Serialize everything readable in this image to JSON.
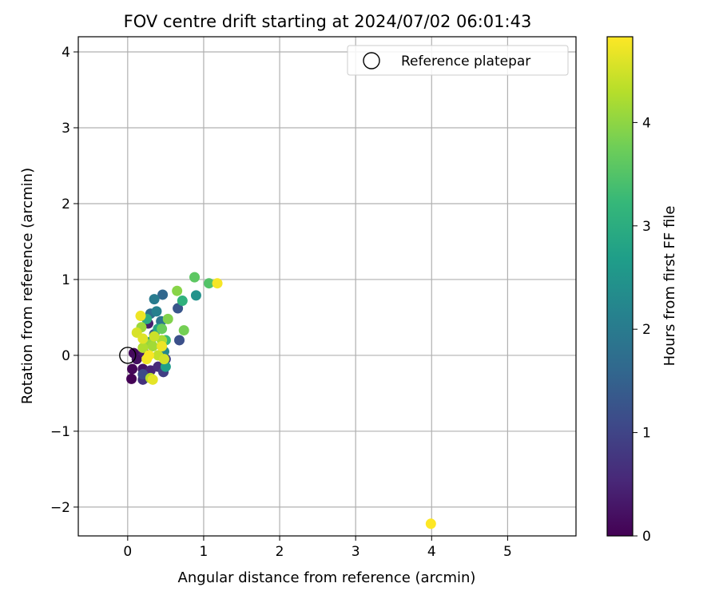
{
  "chart_data": {
    "type": "scatter",
    "title": "FOV centre drift starting at 2024/07/02 06:01:43",
    "xlabel": "Angular distance from reference (arcmin)",
    "ylabel": "Rotation from reference (arcmin)",
    "xlim": [
      -0.65,
      5.9
    ],
    "ylim": [
      -2.38,
      4.2
    ],
    "x_ticks": [
      0,
      1,
      2,
      3,
      4,
      5
    ],
    "y_ticks": [
      -2,
      -1,
      0,
      1,
      2,
      3,
      4
    ],
    "x_tick_labels": [
      "0",
      "1",
      "2",
      "3",
      "4",
      "5"
    ],
    "y_tick_labels": [
      "−2",
      "−1",
      "0",
      "1",
      "2",
      "3",
      "4"
    ],
    "grid": true,
    "legend": {
      "position": "top-right",
      "entries": [
        "Reference platepar"
      ]
    },
    "reference_point": {
      "x": 0,
      "y": 0
    },
    "colorbar": {
      "label": "Hours from first FF file",
      "colormap": "viridis",
      "min": 0,
      "max": 4.83,
      "ticks": [
        0,
        1,
        2,
        3,
        4
      ],
      "tick_labels": [
        "0",
        "1",
        "2",
        "3",
        "4"
      ]
    },
    "colormap_stops": [
      "#440154",
      "#482878",
      "#3e4989",
      "#31688e",
      "#26828e",
      "#1f9e89",
      "#35b779",
      "#6ece58",
      "#b5de2b",
      "#fde725"
    ],
    "points": [
      {
        "x": 0.05,
        "y": -0.31,
        "hours": 0.02
      },
      {
        "x": 0.06,
        "y": -0.18,
        "hours": 0.08
      },
      {
        "x": 0.08,
        "y": 0.03,
        "hours": 0.12
      },
      {
        "x": 0.12,
        "y": -0.05,
        "hours": 0.2
      },
      {
        "x": 0.2,
        "y": -0.18,
        "hours": 0.25
      },
      {
        "x": 0.21,
        "y": 0.04,
        "hours": 0.35
      },
      {
        "x": 0.27,
        "y": 0.42,
        "hours": 0.4
      },
      {
        "x": 0.3,
        "y": -0.2,
        "hours": 0.5
      },
      {
        "x": 0.4,
        "y": -0.15,
        "hours": 0.6
      },
      {
        "x": 0.2,
        "y": -0.32,
        "hours": 0.7
      },
      {
        "x": 0.47,
        "y": -0.22,
        "hours": 0.9
      },
      {
        "x": 0.5,
        "y": -0.05,
        "hours": 1.0
      },
      {
        "x": 0.2,
        "y": -0.25,
        "hours": 1.1
      },
      {
        "x": 0.68,
        "y": 0.2,
        "hours": 1.2
      },
      {
        "x": 0.66,
        "y": 0.62,
        "hours": 1.3
      },
      {
        "x": 0.35,
        "y": 0.28,
        "hours": 1.45
      },
      {
        "x": 0.46,
        "y": 0.8,
        "hours": 1.6
      },
      {
        "x": 0.3,
        "y": 0.55,
        "hours": 1.7
      },
      {
        "x": 0.44,
        "y": 0.45,
        "hours": 1.85
      },
      {
        "x": 0.35,
        "y": 0.74,
        "hours": 2.0
      },
      {
        "x": 0.38,
        "y": 0.58,
        "hours": 2.1
      },
      {
        "x": 0.48,
        "y": 0.05,
        "hours": 2.25
      },
      {
        "x": 0.9,
        "y": 0.79,
        "hours": 2.45
      },
      {
        "x": 0.3,
        "y": 0.18,
        "hours": 2.6
      },
      {
        "x": 0.5,
        "y": -0.15,
        "hours": 2.7
      },
      {
        "x": 0.4,
        "y": 0.35,
        "hours": 2.85
      },
      {
        "x": 0.25,
        "y": 0.48,
        "hours": 3.0
      },
      {
        "x": 0.72,
        "y": 0.72,
        "hours": 3.1
      },
      {
        "x": 0.5,
        "y": 0.2,
        "hours": 3.25
      },
      {
        "x": 1.07,
        "y": 0.95,
        "hours": 3.5
      },
      {
        "x": 0.88,
        "y": 1.03,
        "hours": 3.6
      },
      {
        "x": 0.45,
        "y": 0.35,
        "hours": 3.7
      },
      {
        "x": 0.74,
        "y": 0.33,
        "hours": 3.8
      },
      {
        "x": 0.53,
        "y": 0.48,
        "hours": 3.9
      },
      {
        "x": 0.65,
        "y": 0.85,
        "hours": 3.95
      },
      {
        "x": 0.3,
        "y": 0.15,
        "hours": 4.05
      },
      {
        "x": 0.18,
        "y": 0.37,
        "hours": 4.1
      },
      {
        "x": 0.33,
        "y": 0.12,
        "hours": 4.15
      },
      {
        "x": 0.45,
        "y": 0.2,
        "hours": 4.2
      },
      {
        "x": 0.2,
        "y": 0.1,
        "hours": 4.25
      },
      {
        "x": 0.3,
        "y": -0.3,
        "hours": 4.3
      },
      {
        "x": 0.4,
        "y": 0.0,
        "hours": 4.4
      },
      {
        "x": 0.35,
        "y": 0.25,
        "hours": 4.45
      },
      {
        "x": 0.48,
        "y": -0.05,
        "hours": 4.5
      },
      {
        "x": 0.12,
        "y": 0.3,
        "hours": 4.55
      },
      {
        "x": 0.2,
        "y": 0.22,
        "hours": 4.6
      },
      {
        "x": 0.33,
        "y": -0.32,
        "hours": 4.65
      },
      {
        "x": 0.45,
        "y": 0.12,
        "hours": 4.7
      },
      {
        "x": 0.17,
        "y": 0.52,
        "hours": 4.72
      },
      {
        "x": 0.25,
        "y": -0.05,
        "hours": 4.75
      },
      {
        "x": 1.18,
        "y": 0.95,
        "hours": 4.78
      },
      {
        "x": 0.28,
        "y": 0.0,
        "hours": 4.8
      },
      {
        "x": 3.99,
        "y": -2.22,
        "hours": 4.83
      }
    ]
  }
}
